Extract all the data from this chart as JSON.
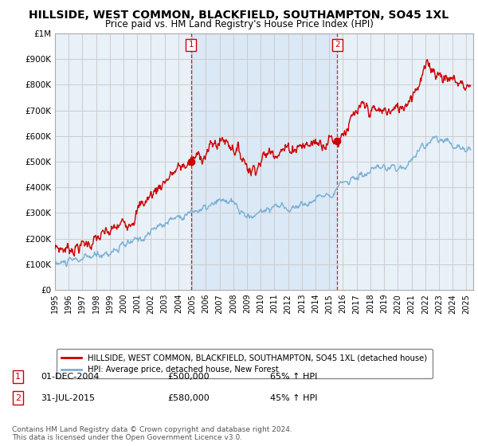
{
  "title": "HILLSIDE, WEST COMMON, BLACKFIELD, SOUTHAMPTON, SO45 1XL",
  "subtitle": "Price paid vs. HM Land Registry's House Price Index (HPI)",
  "ylim": [
    0,
    1000000
  ],
  "yticks": [
    0,
    100000,
    200000,
    300000,
    400000,
    500000,
    600000,
    700000,
    800000,
    900000,
    1000000
  ],
  "ytick_labels": [
    "£0",
    "£100K",
    "£200K",
    "£300K",
    "£400K",
    "£500K",
    "£600K",
    "£700K",
    "£800K",
    "£900K",
    "£1M"
  ],
  "xlim_start": 1995.0,
  "xlim_end": 2025.5,
  "xticks": [
    1995,
    1996,
    1997,
    1998,
    1999,
    2000,
    2001,
    2002,
    2003,
    2004,
    2005,
    2006,
    2007,
    2008,
    2009,
    2010,
    2011,
    2012,
    2013,
    2014,
    2015,
    2016,
    2017,
    2018,
    2019,
    2020,
    2021,
    2022,
    2023,
    2024,
    2025
  ],
  "sale1_x": 2004.917,
  "sale1_y": 500000,
  "sale2_x": 2015.583,
  "sale2_y": 580000,
  "sale1_date": "01-DEC-2004",
  "sale1_price": "£500,000",
  "sale1_hpi": "65% ↑ HPI",
  "sale2_date": "31-JUL-2015",
  "sale2_price": "£580,000",
  "sale2_hpi": "45% ↑ HPI",
  "property_color": "#cc0000",
  "hpi_color": "#7ab0d4",
  "grid_color": "#cccccc",
  "bg_color": "#e8f0f8",
  "highlight_color": "#dbe8f5",
  "legend_label1": "HILLSIDE, WEST COMMON, BLACKFIELD, SOUTHAMPTON, SO45 1XL (detached house)",
  "legend_label2": "HPI: Average price, detached house, New Forest",
  "footnote": "Contains HM Land Registry data © Crown copyright and database right 2024.\nThis data is licensed under the Open Government Licence v3.0."
}
